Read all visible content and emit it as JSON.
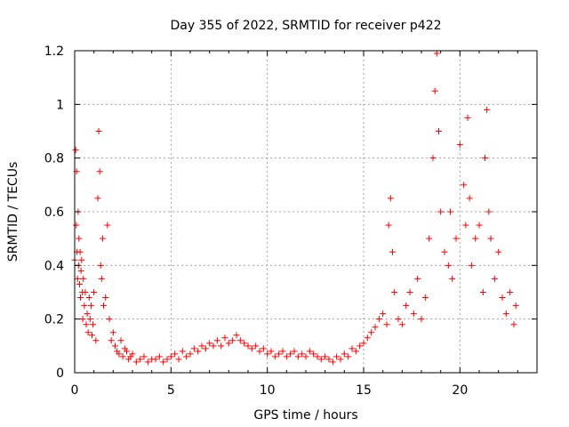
{
  "chart_data": {
    "type": "scatter",
    "title": "Day 355 of 2022, SRMTID for receiver p422",
    "xlabel": "GPS time / hours",
    "ylabel": "SRMTID / TECUs",
    "xlim": [
      0,
      24
    ],
    "ylim": [
      0,
      1.2
    ],
    "x_ticks": [
      0,
      5,
      10,
      15,
      20
    ],
    "x_tick_labels": [
      "0",
      "5",
      "10",
      "15",
      "20"
    ],
    "y_ticks": [
      0,
      0.2,
      0.4,
      0.6,
      0.8,
      1,
      1.2
    ],
    "y_tick_labels": [
      "0",
      "0.2",
      "0.4",
      "0.6",
      "0.8",
      "1",
      "1.2"
    ],
    "grid": true,
    "marker": "+",
    "marker_color": "#ff0000",
    "series": [
      {
        "name": "SRMTID",
        "x": [
          0.0,
          0.05,
          0.08,
          0.1,
          0.12,
          0.15,
          0.18,
          0.2,
          0.22,
          0.25,
          0.28,
          0.3,
          0.33,
          0.36,
          0.4,
          0.42,
          0.45,
          0.5,
          0.55,
          0.6,
          0.65,
          0.7,
          0.75,
          0.8,
          0.85,
          0.9,
          0.95,
          1.0,
          1.1,
          1.2,
          1.25,
          1.3,
          1.35,
          1.4,
          1.45,
          1.5,
          1.6,
          1.7,
          1.8,
          1.9,
          2.0,
          2.1,
          2.2,
          2.3,
          2.4,
          2.5,
          2.6,
          2.7,
          2.8,
          2.9,
          3.0,
          3.2,
          3.4,
          3.6,
          3.8,
          4.0,
          4.2,
          4.4,
          4.6,
          4.8,
          5.0,
          5.2,
          5.4,
          5.6,
          5.8,
          6.0,
          6.2,
          6.4,
          6.6,
          6.8,
          7.0,
          7.2,
          7.4,
          7.6,
          7.8,
          8.0,
          8.2,
          8.4,
          8.6,
          8.8,
          9.0,
          9.2,
          9.4,
          9.6,
          9.8,
          10.0,
          10.2,
          10.4,
          10.6,
          10.8,
          11.0,
          11.2,
          11.4,
          11.6,
          11.8,
          12.0,
          12.2,
          12.4,
          12.6,
          12.8,
          13.0,
          13.2,
          13.4,
          13.6,
          13.8,
          14.0,
          14.2,
          14.4,
          14.6,
          14.8,
          15.0,
          15.2,
          15.4,
          15.6,
          15.8,
          16.0,
          16.2,
          16.3,
          16.4,
          16.5,
          16.6,
          16.8,
          17.0,
          17.2,
          17.4,
          17.6,
          17.8,
          18.0,
          18.2,
          18.4,
          18.6,
          18.7,
          18.8,
          18.9,
          19.0,
          19.2,
          19.4,
          19.5,
          19.6,
          19.8,
          20.0,
          20.2,
          20.3,
          20.4,
          20.5,
          20.6,
          20.8,
          21.0,
          21.2,
          21.3,
          21.4,
          21.5,
          21.6,
          21.8,
          22.0,
          22.2,
          22.4,
          22.6,
          22.8,
          22.9
        ],
        "y": [
          0.42,
          0.83,
          0.55,
          0.75,
          0.45,
          0.35,
          0.6,
          0.4,
          0.5,
          0.33,
          0.45,
          0.28,
          0.38,
          0.42,
          0.3,
          0.2,
          0.35,
          0.25,
          0.3,
          0.18,
          0.22,
          0.15,
          0.28,
          0.2,
          0.25,
          0.14,
          0.18,
          0.3,
          0.12,
          0.65,
          0.9,
          0.75,
          0.4,
          0.35,
          0.5,
          0.25,
          0.28,
          0.55,
          0.2,
          0.12,
          0.15,
          0.1,
          0.08,
          0.07,
          0.12,
          0.06,
          0.09,
          0.08,
          0.05,
          0.06,
          0.07,
          0.04,
          0.05,
          0.06,
          0.04,
          0.05,
          0.05,
          0.06,
          0.04,
          0.05,
          0.06,
          0.07,
          0.05,
          0.08,
          0.06,
          0.07,
          0.09,
          0.08,
          0.1,
          0.09,
          0.11,
          0.1,
          0.12,
          0.1,
          0.13,
          0.11,
          0.12,
          0.14,
          0.12,
          0.11,
          0.1,
          0.09,
          0.1,
          0.08,
          0.09,
          0.07,
          0.08,
          0.06,
          0.07,
          0.08,
          0.06,
          0.07,
          0.08,
          0.06,
          0.07,
          0.06,
          0.08,
          0.07,
          0.06,
          0.05,
          0.06,
          0.05,
          0.04,
          0.06,
          0.05,
          0.07,
          0.06,
          0.09,
          0.08,
          0.1,
          0.11,
          0.13,
          0.15,
          0.17,
          0.2,
          0.22,
          0.18,
          0.55,
          0.65,
          0.45,
          0.3,
          0.2,
          0.18,
          0.25,
          0.3,
          0.22,
          0.35,
          0.2,
          0.28,
          0.5,
          0.8,
          1.05,
          1.19,
          0.9,
          0.6,
          0.45,
          0.4,
          0.6,
          0.35,
          0.5,
          0.85,
          0.7,
          0.55,
          0.95,
          0.65,
          0.4,
          0.5,
          0.55,
          0.3,
          0.8,
          0.98,
          0.6,
          0.5,
          0.35,
          0.45,
          0.28,
          0.22,
          0.3,
          0.18,
          0.25
        ]
      }
    ]
  }
}
